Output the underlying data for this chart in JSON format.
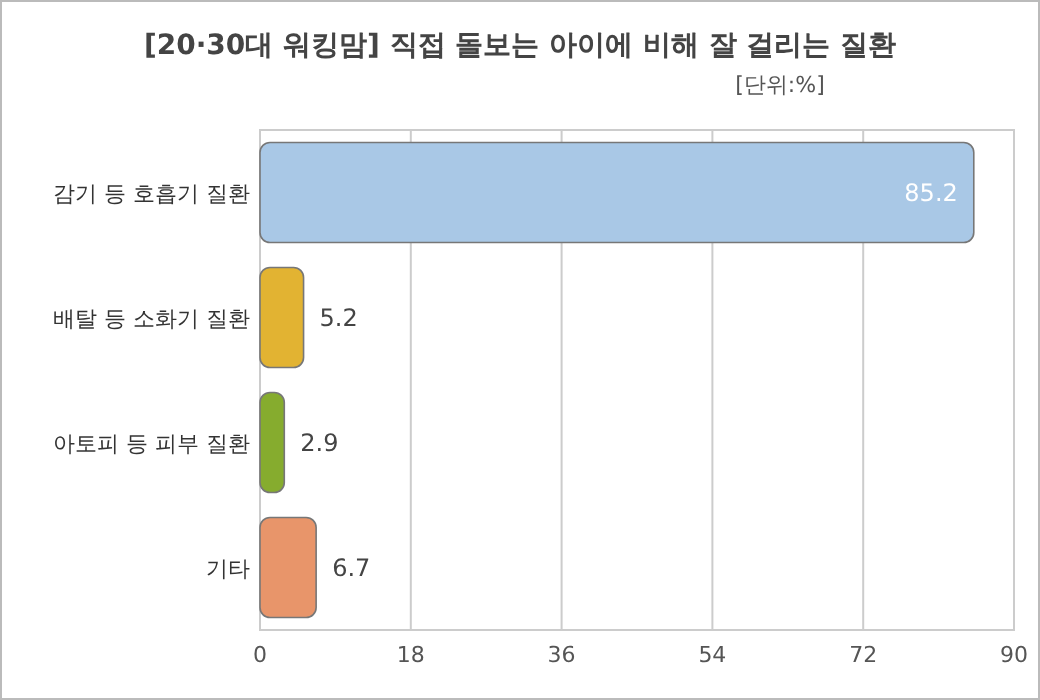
{
  "chart_data": {
    "type": "bar",
    "orientation": "horizontal",
    "title": "[20·30대 워킹맘] 직접 돌보는 아이에 비해 잘 걸리는 질환",
    "subtitle": "[단위:%]",
    "categories": [
      "감기 등 호흡기 질환",
      "배탈 등 소화기 질환",
      "아토피 등 피부 질환",
      "기타"
    ],
    "values": [
      85.2,
      5.2,
      2.9,
      6.7
    ],
    "colors": [
      "#a9c8e6",
      "#e2b332",
      "#86ac2e",
      "#e8956a"
    ],
    "xlim": [
      0,
      90
    ],
    "xticks": [
      0,
      18,
      36,
      54,
      72,
      90
    ],
    "grid": "x",
    "data_labels": true
  }
}
